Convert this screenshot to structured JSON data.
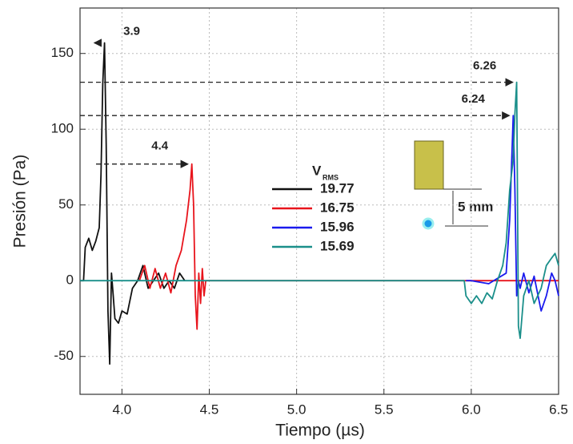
{
  "chart_data": {
    "type": "line",
    "x_label": "Tiempo (µs)",
    "y_label": "Presión (Pa)",
    "xlim": [
      3.76,
      6.5
    ],
    "ylim": [
      -75,
      180
    ],
    "xticks": [
      {
        "value": 4.0,
        "label": "4.0"
      },
      4.5,
      {
        "value": 5.0,
        "label": "5.0"
      },
      5.5,
      {
        "value": 6.0,
        "label": "6.0"
      },
      6.5
    ],
    "yticks": [
      -50,
      0,
      50,
      100,
      150
    ],
    "grid": true,
    "legend_title": "V",
    "legend_title_sub": "RMS",
    "series": [
      {
        "name": "19.77",
        "color": "#111111",
        "x": [
          3.76,
          3.78,
          3.79,
          3.81,
          3.83,
          3.85,
          3.87,
          3.88,
          3.89,
          3.9,
          3.91,
          3.92,
          3.93,
          3.94,
          3.95,
          3.96,
          3.98,
          4.0,
          4.03,
          4.06,
          4.09,
          4.12,
          4.15,
          4.18,
          4.21,
          4.24,
          4.27,
          4.3,
          4.33,
          4.36
        ],
        "values": [
          0,
          0,
          22,
          28,
          20,
          26,
          35,
          70,
          130,
          157,
          90,
          -20,
          -55,
          5,
          -10,
          -25,
          -28,
          -20,
          -22,
          -5,
          0,
          10,
          -5,
          0,
          5,
          -5,
          0,
          -5,
          5,
          0
        ]
      },
      {
        "name": "16.75",
        "color": "#e8141c",
        "x": [
          4.1,
          4.13,
          4.16,
          4.19,
          4.22,
          4.25,
          4.28,
          4.31,
          4.34,
          4.37,
          4.39,
          4.4,
          4.41,
          4.42,
          4.43,
          4.44,
          4.45,
          4.46,
          4.47,
          4.48,
          4.5,
          6.5
        ],
        "values": [
          0,
          10,
          -5,
          8,
          -5,
          5,
          -8,
          10,
          20,
          40,
          60,
          77,
          50,
          -10,
          -32,
          5,
          -15,
          8,
          -10,
          0,
          0,
          0
        ]
      },
      {
        "name": "15.96",
        "color": "#1a1aee",
        "x": [
          5.97,
          6.0,
          6.1,
          6.2,
          6.22,
          6.24,
          6.25,
          6.26,
          6.27,
          6.28,
          6.3,
          6.33,
          6.36,
          6.4,
          6.43,
          6.46,
          6.48,
          6.5
        ],
        "values": [
          0,
          0,
          -2,
          5,
          40,
          109,
          60,
          -10,
          0,
          -5,
          5,
          -8,
          3,
          -20,
          -10,
          5,
          0,
          -10
        ]
      },
      {
        "name": "15.69",
        "color": "#1a8f8a",
        "x": [
          3.76,
          5.96,
          5.97,
          6.0,
          6.03,
          6.06,
          6.09,
          6.12,
          6.15,
          6.18,
          6.2,
          6.22,
          6.24,
          6.25,
          6.26,
          6.27,
          6.28,
          6.3,
          6.33,
          6.36,
          6.4,
          6.43,
          6.46,
          6.48,
          6.5
        ],
        "values": [
          0,
          0,
          -10,
          -15,
          -10,
          -15,
          -8,
          -12,
          0,
          10,
          25,
          60,
          80,
          110,
          131,
          -30,
          -38,
          -10,
          0,
          -15,
          -5,
          10,
          15,
          18,
          10
        ]
      }
    ],
    "annotations": [
      {
        "label": "3.9",
        "x": 3.9,
        "y": 157
      },
      {
        "label": "4.4",
        "x": 4.4,
        "y": 77
      },
      {
        "label": "6.26",
        "x": 6.26,
        "y": 131
      },
      {
        "label": "6.24",
        "x": 6.24,
        "y": 109
      }
    ],
    "inset_label": "5 mm"
  }
}
